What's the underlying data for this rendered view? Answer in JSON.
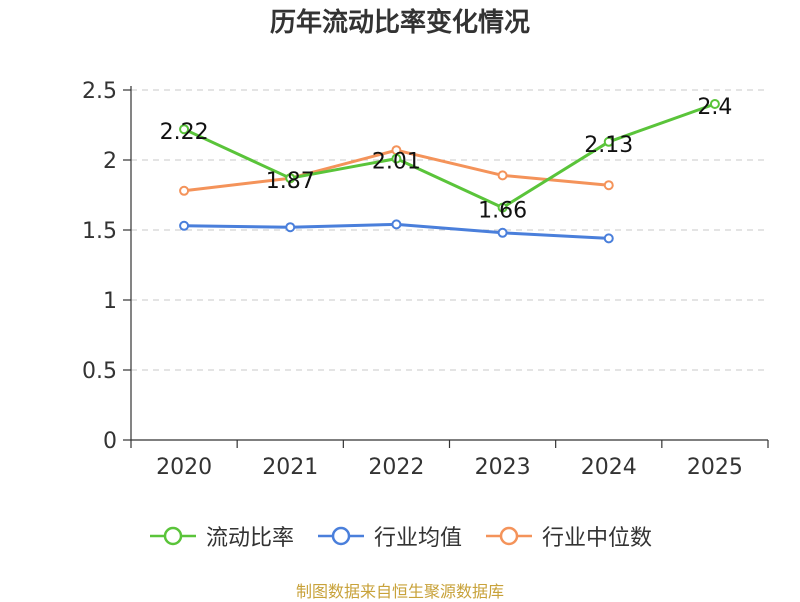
{
  "chart_data": {
    "type": "line",
    "title": "历年流动比率变化情况",
    "categories": [
      "2020",
      "2021",
      "2022",
      "2023",
      "2024",
      "2025"
    ],
    "ylim": [
      0,
      2.5
    ],
    "yticks": [
      "0",
      "0.5",
      "1",
      "1.5",
      "2",
      "2.5"
    ],
    "ytick_values": [
      0,
      0.5,
      1,
      1.5,
      2,
      2.5
    ],
    "grid": true,
    "legend_position": "bottom",
    "series": [
      {
        "name": "流动比率",
        "color": "#5ac43a",
        "values": [
          2.22,
          1.87,
          2.01,
          1.66,
          2.13,
          2.4
        ],
        "labels": [
          "2.22",
          "1.87",
          "2.01",
          "1.66",
          "2.13",
          "2.4"
        ]
      },
      {
        "name": "行业均值",
        "color": "#4a7fdb",
        "values": [
          1.53,
          1.52,
          1.54,
          1.48,
          1.44,
          null
        ]
      },
      {
        "name": "行业中位数",
        "color": "#f4935a",
        "values": [
          1.78,
          1.87,
          2.07,
          1.89,
          1.82,
          null
        ]
      }
    ]
  },
  "source_note": "制图数据来自恒生聚源数据库"
}
